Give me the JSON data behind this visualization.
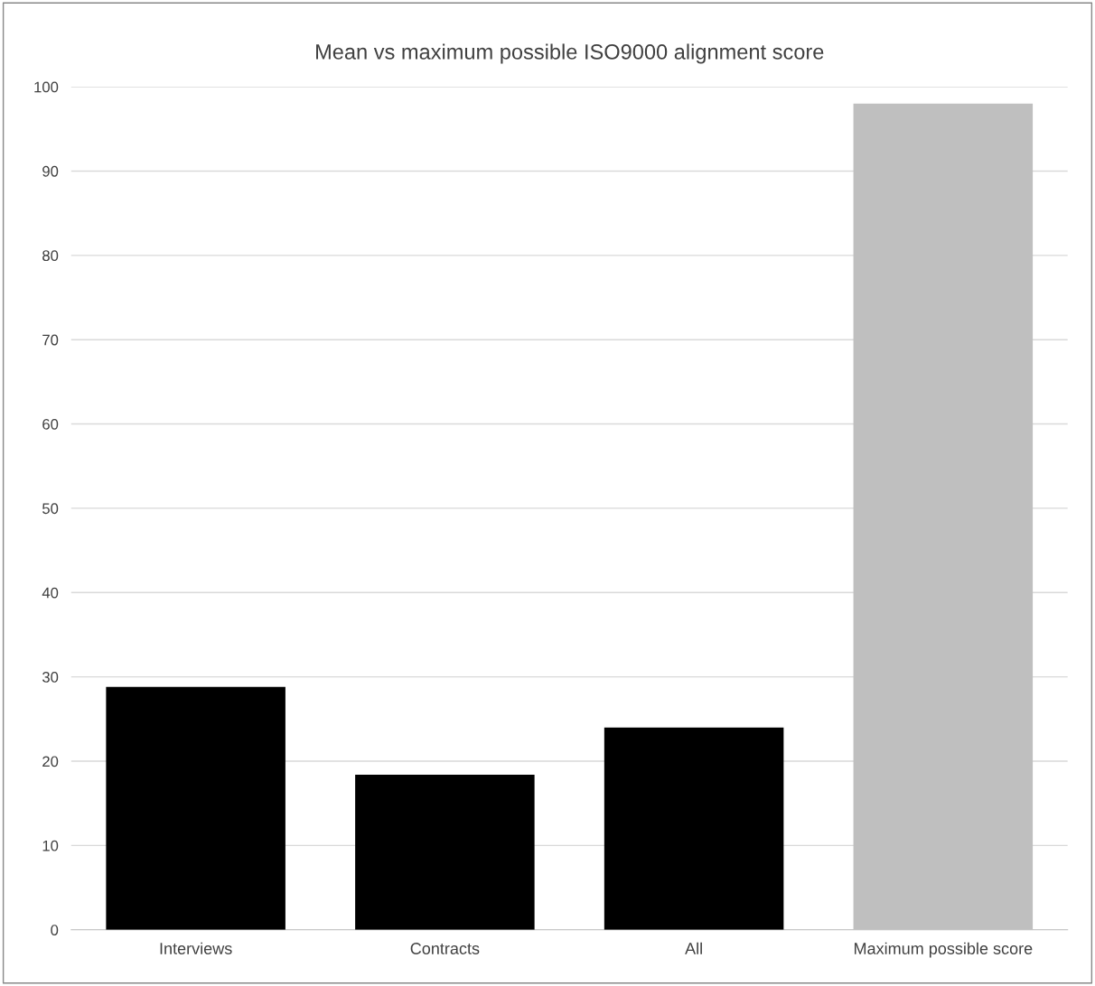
{
  "chart_data": {
    "type": "bar",
    "title": "Mean vs maximum possible ISO9000 alignment score",
    "categories": [
      "Interviews",
      "Contracts",
      "All",
      "Maximum possible score"
    ],
    "values": [
      28.8,
      18.4,
      24.0,
      98.0
    ],
    "colors": [
      "#000000",
      "#000000",
      "#000000",
      "#bfbfbf"
    ],
    "ylim": [
      0,
      100
    ],
    "yticks": [
      0,
      10,
      20,
      30,
      40,
      50,
      60,
      70,
      80,
      90,
      100
    ],
    "grid": "y"
  }
}
